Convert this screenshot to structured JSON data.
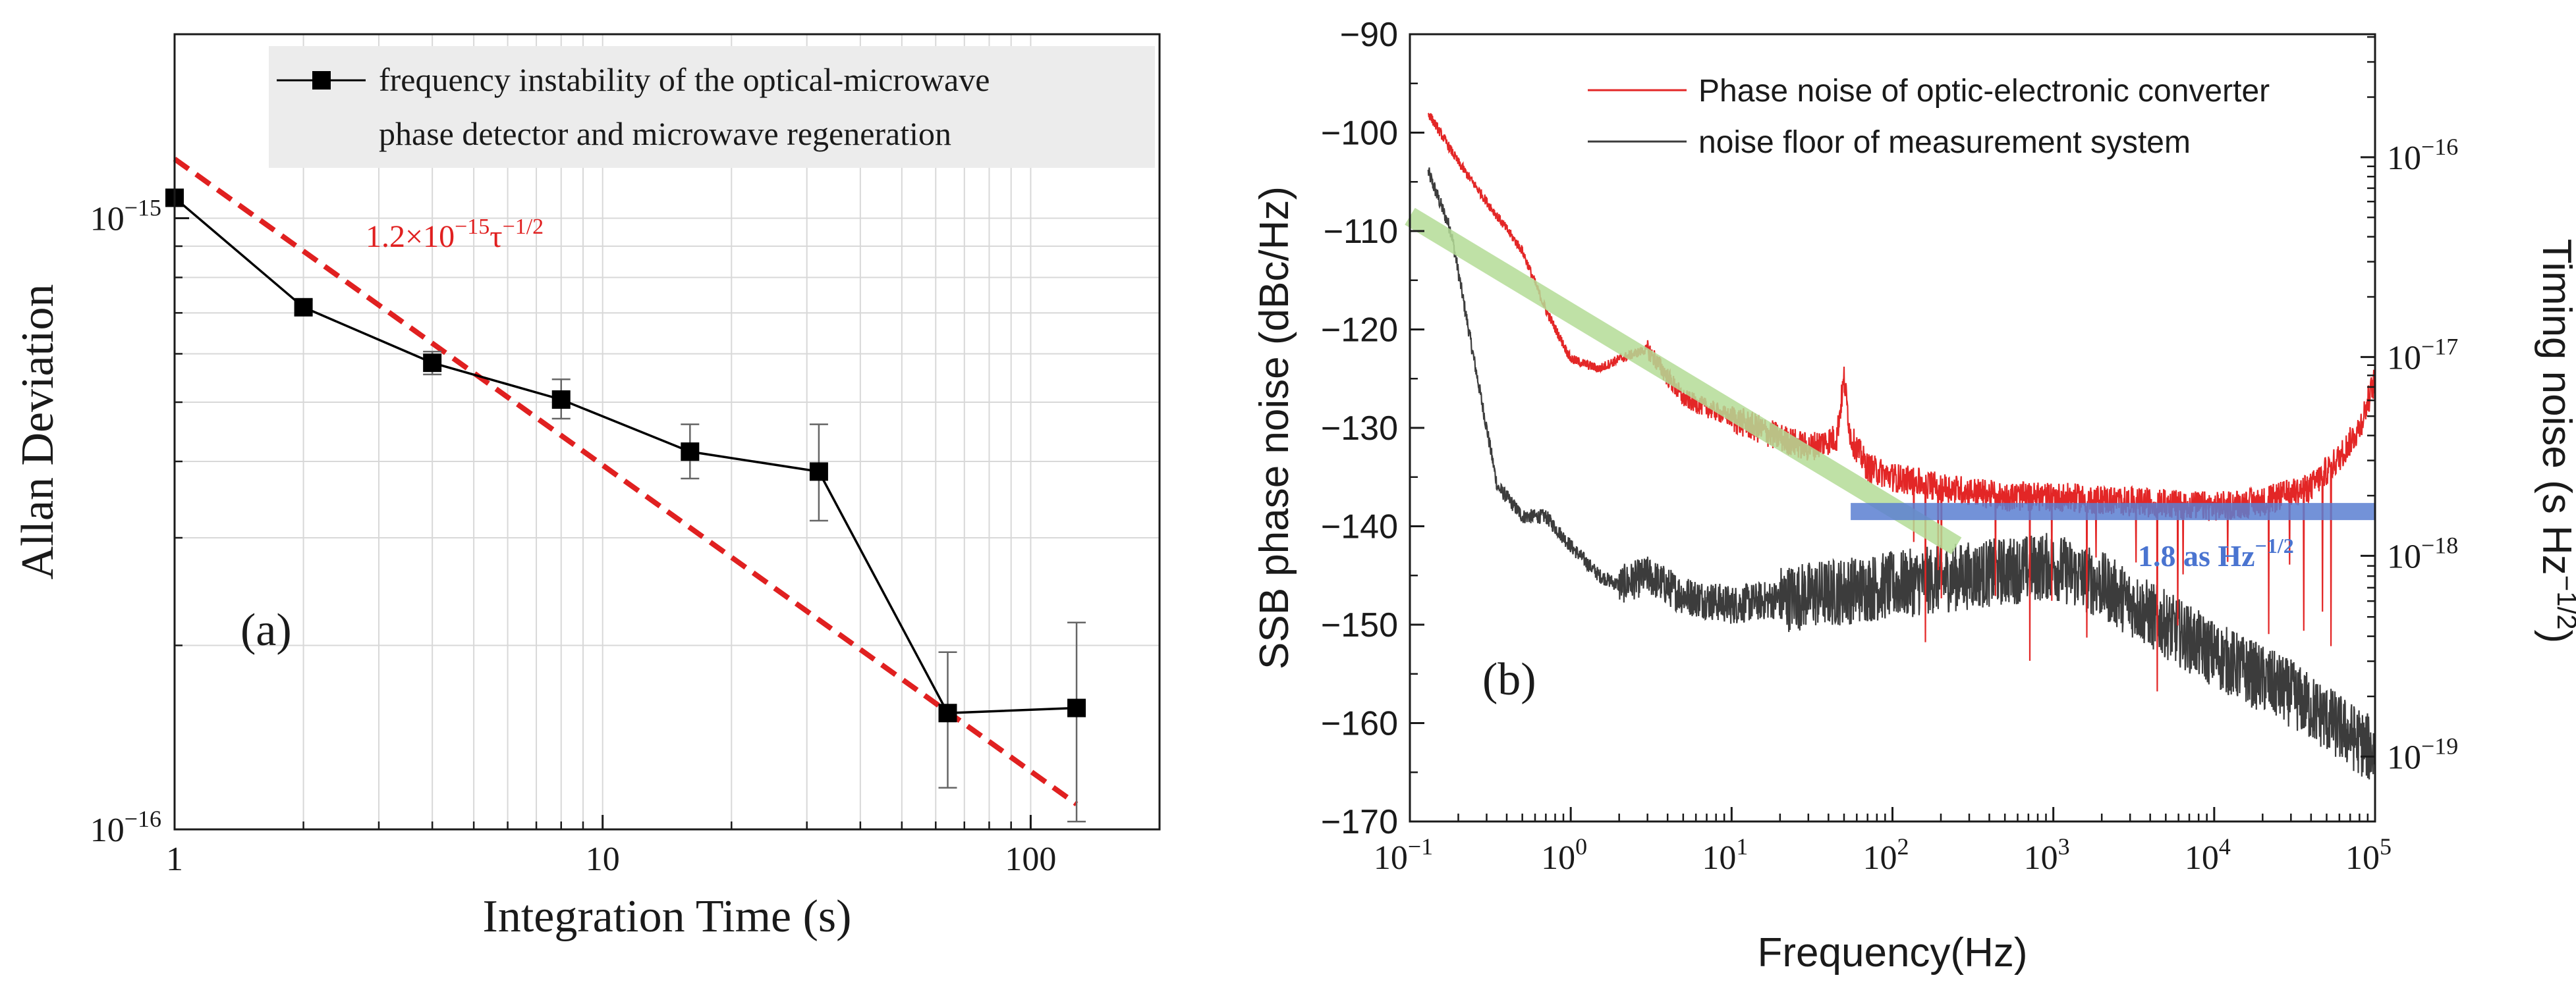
{
  "chart_data": [
    {
      "panel": "a",
      "type": "line",
      "panel_label": "(a)",
      "xlabel": "Integration Time (s)",
      "ylabel": "Allan Deviation",
      "xscale": "log",
      "yscale": "log",
      "xlim": [
        1,
        200
      ],
      "ylim": [
        1e-16,
        2e-15
      ],
      "x_tick_labels": [
        "1",
        "10",
        "100"
      ],
      "y_tick_labels": [
        {
          "base": "10",
          "exp": "−15"
        },
        {
          "base": "10",
          "exp": "−16"
        }
      ],
      "grid": true,
      "legend_position": "top-right",
      "legend": {
        "line1": "frequency instability of the optical-microwave",
        "line2": "phase detector and microwave regeneration"
      },
      "series": [
        {
          "name": "frequency instability of the optical-microwave phase detector and microwave regeneration",
          "color": "#000000",
          "marker": "square",
          "x": [
            1,
            2,
            4,
            8,
            16,
            32,
            64,
            128
          ],
          "y": [
            1.08e-15,
            7.15e-16,
            5.8e-16,
            5.05e-16,
            4.15e-16,
            3.85e-16,
            1.55e-16,
            1.58e-16
          ],
          "err_low": [
            1.08e-15,
            6.95e-16,
            5.55e-16,
            4.7e-16,
            3.75e-16,
            3.2e-16,
            1.17e-16,
            1.03e-16
          ],
          "err_high": [
            1.08e-15,
            7.35e-16,
            6.05e-16,
            5.45e-16,
            4.6e-16,
            4.6e-16,
            1.95e-16,
            2.18e-16
          ]
        },
        {
          "name": "fit",
          "style": "dashed",
          "color": "#e02020",
          "x": [
            1,
            128
          ],
          "y": [
            1.25e-15,
            1.1e-16
          ]
        }
      ],
      "annotation": {
        "prefix": "1.2×10",
        "exp1": "−15",
        "tau": "τ",
        "exp2": "−1/2"
      }
    },
    {
      "panel": "b",
      "type": "line",
      "panel_label": "(b)",
      "xlabel": "Frequency(Hz)",
      "ylabel": "SSB phase noise (dBc/Hz)",
      "y2label": "Timing noise (s Hz",
      "y2label_exp": "−1/2",
      "y2label_close": ")",
      "xscale": "log",
      "xlim": [
        0.1,
        100000
      ],
      "ylim": [
        -170,
        -90
      ],
      "x_tick_labels": [
        {
          "base": "10",
          "exp": "−1"
        },
        {
          "base": "10",
          "exp": "0"
        },
        {
          "base": "10",
          "exp": "1"
        },
        {
          "base": "10",
          "exp": "2"
        },
        {
          "base": "10",
          "exp": "3"
        },
        {
          "base": "10",
          "exp": "4"
        },
        {
          "base": "10",
          "exp": "5"
        }
      ],
      "y_ticks": [
        -90,
        -100,
        -110,
        -120,
        -130,
        -140,
        -150,
        -160,
        -170
      ],
      "y_tick_labels": [
        "−90",
        "−100",
        "−110",
        "−120",
        "−130",
        "−140",
        "−150",
        "−160",
        "−170"
      ],
      "y2_ticks": [
        -102.5,
        -122.8,
        -143.0,
        -163.4
      ],
      "y2_tick_labels": [
        {
          "base": "10",
          "exp": "−16"
        },
        {
          "base": "10",
          "exp": "−17"
        },
        {
          "base": "10",
          "exp": "−18"
        },
        {
          "base": "10",
          "exp": "−19"
        }
      ],
      "legend_position": "top-right",
      "legend": [
        {
          "label": "Phase noise of optic-electronic converter",
          "color": "#e32626"
        },
        {
          "label": "noise floor of measurement system",
          "color": "#3c3c3c"
        }
      ],
      "series": [
        {
          "name": "Phase noise of optic-electronic converter",
          "color": "#e32626",
          "x": [
            0.13,
            0.2,
            0.3,
            0.5,
            0.7,
            1.0,
            1.5,
            2.0,
            3.0,
            5,
            10,
            20,
            30,
            45,
            50,
            55,
            70,
            100,
            200,
            500,
            1000,
            3000,
            10000,
            20000,
            40000,
            60000,
            80000,
            100000
          ],
          "y": [
            -98,
            -103,
            -107,
            -112,
            -118,
            -123,
            -124,
            -123,
            -122,
            -127,
            -129,
            -131,
            -132,
            -131,
            -125,
            -131,
            -134,
            -135,
            -136,
            -137,
            -137,
            -137.5,
            -138,
            -137.5,
            -136,
            -133,
            -130,
            -125
          ]
        },
        {
          "name": "noise floor of measurement system",
          "color": "#3c3c3c",
          "x": [
            0.13,
            0.18,
            0.25,
            0.3,
            0.35,
            0.4,
            0.5,
            0.7,
            1.0,
            1.5,
            2.0,
            3.0,
            5,
            10,
            30,
            100,
            300,
            1000,
            2000,
            4000,
            10000,
            30000,
            100000
          ],
          "y": [
            -104,
            -110,
            -123,
            -130,
            -136,
            -137,
            -139,
            -139,
            -142,
            -145,
            -146,
            -145,
            -147,
            -148,
            -147,
            -146,
            -145,
            -144,
            -146,
            -149,
            -153,
            -157,
            -163
          ]
        },
        {
          "name": "green fit band",
          "color": "#b4dc96",
          "x": [
            0.1,
            250
          ],
          "y": [
            -108.5,
            -142
          ]
        },
        {
          "name": "1.8 as Hz^-1/2 level",
          "color": "#5b7fd1",
          "x": [
            55,
            100000
          ],
          "y": [
            -138.5,
            -138.5
          ]
        }
      ],
      "annotation": {
        "text": "1.8 as Hz",
        "exp": "−1/2"
      }
    }
  ]
}
